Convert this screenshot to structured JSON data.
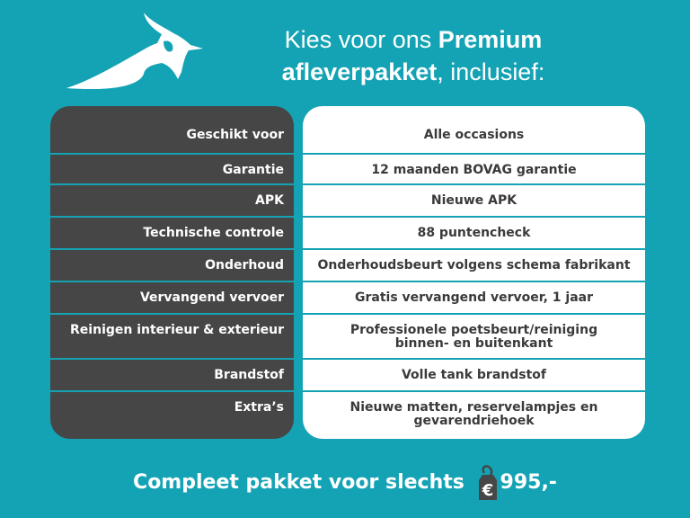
{
  "header": {
    "title_part1": "Kies voor ons ",
    "title_bold1": "Premium",
    "title_bold2": "afleverpakket",
    "title_part2": ", inclusief:"
  },
  "logo": {
    "icon": "lapwing-bird-logo"
  },
  "table": {
    "rows": [
      {
        "label": "Geschikt voor",
        "value": "Alle occasions"
      },
      {
        "label": "Garantie",
        "value": "12 maanden BOVAG garantie"
      },
      {
        "label": "APK",
        "value": "Nieuwe APK"
      },
      {
        "label": "Technische controle",
        "value": "88 puntencheck"
      },
      {
        "label": "Onderhoud",
        "value": "Onderhoudsbeurt volgens schema fabrikant"
      },
      {
        "label": "Vervangend vervoer",
        "value": "Gratis vervangend vervoer, 1 jaar"
      },
      {
        "label": "Reinigen interieur & exterieur",
        "value": "Professionele poetsbeurt/reiniging binnen- en buitenkant"
      },
      {
        "label": "Brandstof",
        "value": "Volle tank brandstof"
      },
      {
        "label": "Extra’s",
        "value": "Nieuwe matten, reservelampjes en gevarendriehoek"
      }
    ]
  },
  "footer": {
    "text": "Compleet pakket voor slechts",
    "currency": "€",
    "price": "995,-",
    "icon": "price-tag-icon"
  },
  "colors": {
    "background": "#14a3b4",
    "dark_panel": "#464646",
    "light_panel": "#ffffff"
  }
}
